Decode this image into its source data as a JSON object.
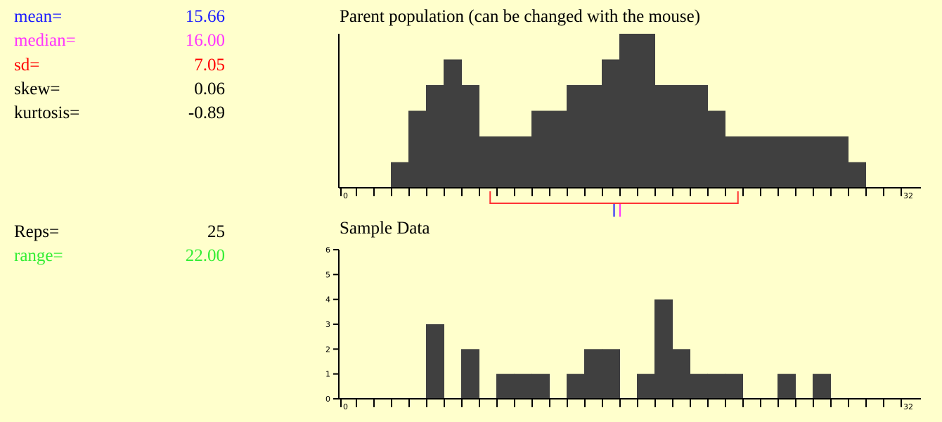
{
  "stats": [
    {
      "label": "mean=",
      "value": "15.66",
      "color": "#1a1aff"
    },
    {
      "label": "median=",
      "value": "16.00",
      "color": "#ff33ff"
    },
    {
      "label": "sd=",
      "value": "7.05",
      "color": "#ff0000"
    },
    {
      "label": "skew=",
      "value": "0.06",
      "color": "#000000"
    },
    {
      "label": "kurtosis=",
      "value": "-0.89",
      "color": "#000000"
    }
  ],
  "reps": {
    "label": "Reps=",
    "value": "25",
    "color": "#000000"
  },
  "range": {
    "label": "range=",
    "value": "22.00",
    "color": "#33ee33"
  },
  "colors": {
    "background": "#ffffcc",
    "bar": "#404040",
    "axis": "#000000",
    "sd_bracket": "#ff3333",
    "mean_marker": "#1a1aff",
    "median_marker": "#ff33ff"
  },
  "chart_data": [
    {
      "type": "bar",
      "title": "Parent population (can be changed with the mouse)",
      "x_range": [
        0,
        32
      ],
      "x_tick_labels": [
        "0",
        "32"
      ],
      "relative_heights": [
        0,
        0,
        0,
        1,
        3,
        4,
        5,
        4,
        2,
        2,
        2,
        3,
        3,
        4,
        4,
        5,
        6,
        6,
        4,
        4,
        4,
        3,
        2,
        2,
        2,
        2,
        2,
        2,
        2,
        1,
        0,
        0
      ],
      "mean": 15.66,
      "median": 16.0,
      "sd": 7.05,
      "sd_bracket": [
        8.61,
        22.71
      ]
    },
    {
      "type": "bar",
      "title": "Sample Data",
      "x_range": [
        0,
        32
      ],
      "x_tick_labels": [
        "0",
        "32"
      ],
      "ylim": [
        0,
        6
      ],
      "y_ticks": [
        0,
        1,
        2,
        3,
        4,
        5,
        6
      ],
      "counts": [
        0,
        0,
        0,
        0,
        0,
        3,
        0,
        2,
        0,
        1,
        1,
        1,
        0,
        1,
        2,
        2,
        0,
        1,
        4,
        2,
        1,
        1,
        1,
        0,
        0,
        1,
        0,
        1,
        0,
        0,
        0,
        0
      ]
    }
  ]
}
